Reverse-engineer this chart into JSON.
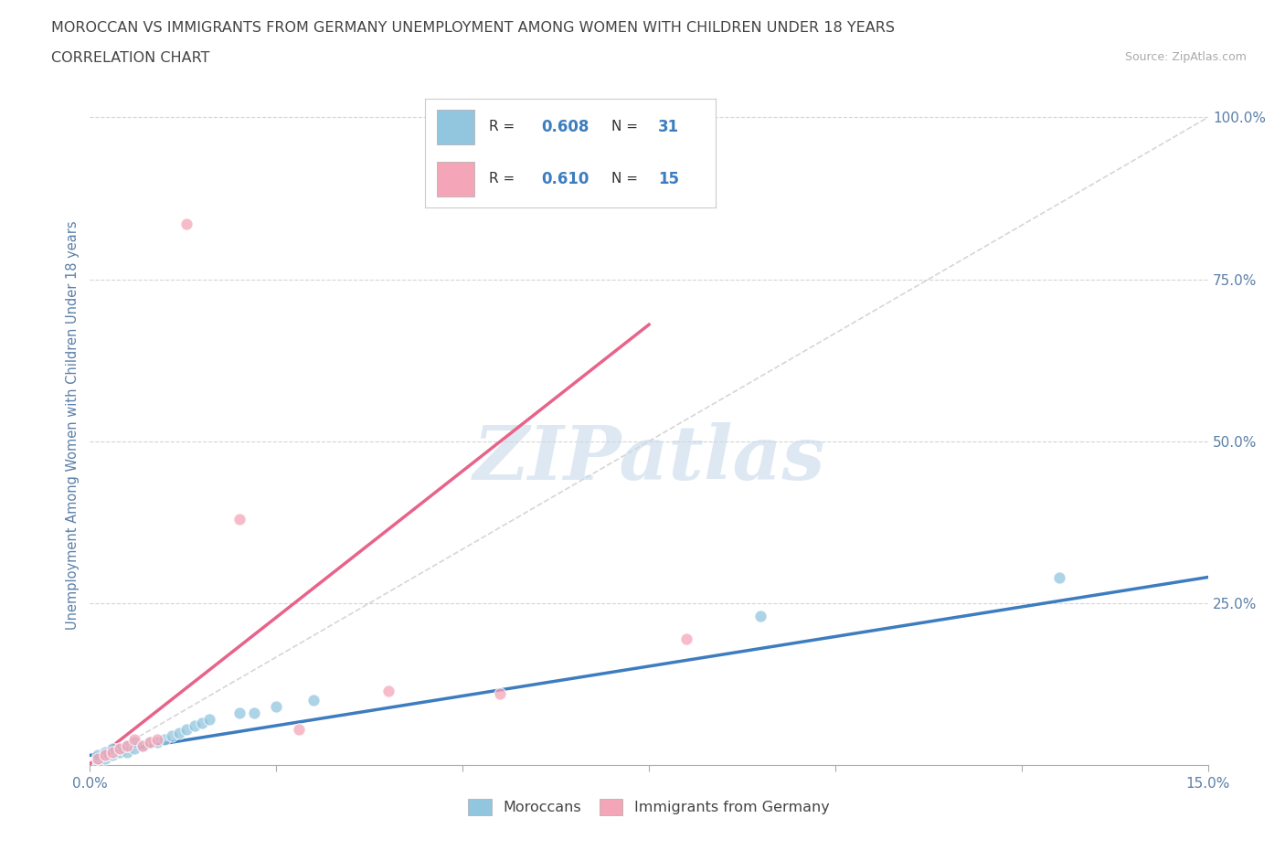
{
  "title_line1": "MOROCCAN VS IMMIGRANTS FROM GERMANY UNEMPLOYMENT AMONG WOMEN WITH CHILDREN UNDER 18 YEARS",
  "title_line2": "CORRELATION CHART",
  "source_text": "Source: ZipAtlas.com",
  "ylabel": "Unemployment Among Women with Children Under 18 years",
  "xmin": 0.0,
  "xmax": 0.15,
  "ymin": 0.0,
  "ymax": 1.05,
  "right_yticks": [
    0.25,
    0.5,
    0.75,
    1.0
  ],
  "right_yticklabels": [
    "25.0%",
    "50.0%",
    "75.0%",
    "100.0%"
  ],
  "legend_label1": "Moroccans",
  "legend_label2": "Immigrants from Germany",
  "legend_R1": "0.608",
  "legend_N1": "31",
  "legend_R2": "0.610",
  "legend_N2": "15",
  "blue_color": "#92c5de",
  "pink_color": "#f4a6b8",
  "blue_line_color": "#3d7dbf",
  "pink_line_color": "#e8638a",
  "watermark": "ZIPatlas",
  "watermark_color": "#c8daea",
  "blue_dots_x": [
    0.001,
    0.001,
    0.001,
    0.002,
    0.002,
    0.002,
    0.003,
    0.003,
    0.003,
    0.004,
    0.004,
    0.005,
    0.005,
    0.006,
    0.006,
    0.007,
    0.008,
    0.009,
    0.01,
    0.011,
    0.012,
    0.013,
    0.014,
    0.015,
    0.016,
    0.02,
    0.022,
    0.025,
    0.03,
    0.09,
    0.13
  ],
  "blue_dots_y": [
    0.005,
    0.01,
    0.015,
    0.01,
    0.015,
    0.02,
    0.015,
    0.02,
    0.025,
    0.02,
    0.025,
    0.02,
    0.03,
    0.025,
    0.035,
    0.03,
    0.035,
    0.035,
    0.04,
    0.045,
    0.05,
    0.055,
    0.06,
    0.065,
    0.07,
    0.08,
    0.08,
    0.09,
    0.1,
    0.23,
    0.29
  ],
  "pink_dots_x": [
    0.001,
    0.002,
    0.003,
    0.004,
    0.005,
    0.006,
    0.007,
    0.008,
    0.009,
    0.013,
    0.02,
    0.028,
    0.04,
    0.055,
    0.08
  ],
  "pink_dots_y": [
    0.01,
    0.015,
    0.02,
    0.025,
    0.03,
    0.04,
    0.03,
    0.035,
    0.04,
    0.835,
    0.38,
    0.055,
    0.115,
    0.11,
    0.195
  ],
  "blue_line_x": [
    0.0,
    0.15
  ],
  "blue_line_y": [
    0.015,
    0.29
  ],
  "pink_line_x": [
    0.0,
    0.075
  ],
  "pink_line_y": [
    0.002,
    0.68
  ],
  "diag_line_x": [
    0.0,
    0.15
  ],
  "diag_line_y": [
    0.0,
    1.0
  ],
  "grid_color": "#d5d5d5",
  "background_color": "#ffffff",
  "title_color": "#444444",
  "axis_label_color": "#5a7fa8",
  "xtick_positions": [
    0.0,
    0.025,
    0.05,
    0.075,
    0.1,
    0.125,
    0.15
  ],
  "xtick_labels_show": [
    "0.0%",
    "",
    "",
    "",
    "",
    "",
    "15.0%"
  ]
}
